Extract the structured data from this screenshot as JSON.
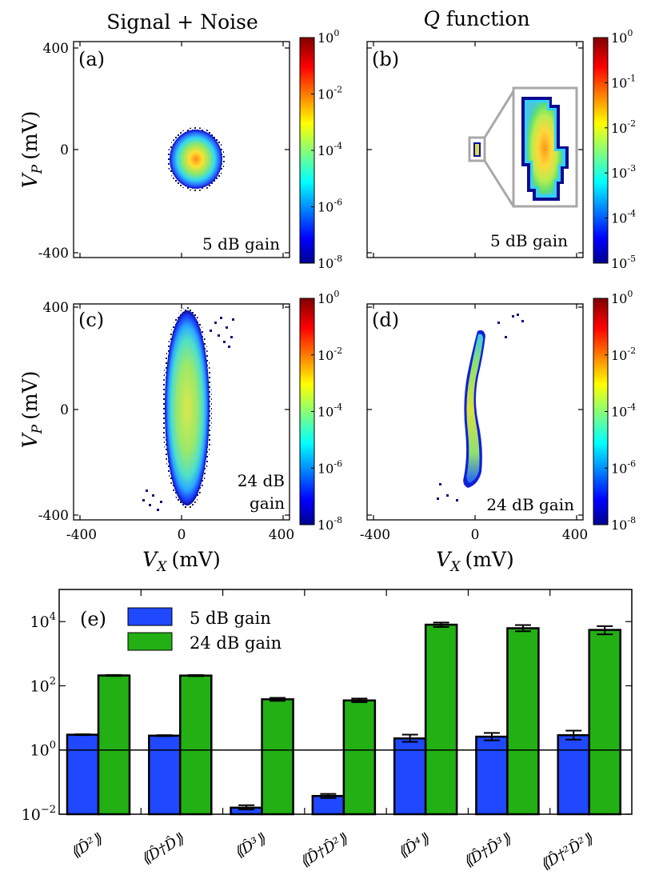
{
  "colors": {
    "blue_bar": "#1f48ff",
    "green_bar": "#22b014",
    "frame": "#000000",
    "inset_frame": "#a8a8a8"
  },
  "titles": {
    "left": "Signal + Noise",
    "right_q": "Q",
    "right_rest": "function"
  },
  "axes": {
    "vp_main": "V",
    "vp_sub": "P",
    "vp_unit": "(mV)",
    "vx_main": "V",
    "vx_sub": "X",
    "vx_unit": "(mV)"
  },
  "panels": [
    {
      "label": "(a)",
      "gain": "5 dB gain",
      "colorbar": {
        "ticks": [
          {
            "base": "10",
            "exp": "0"
          },
          {
            "base": "10",
            "exp": "-2"
          },
          {
            "base": "10",
            "exp": "-4"
          },
          {
            "base": "10",
            "exp": "-6"
          },
          {
            "base": "10",
            "exp": "-8"
          }
        ]
      },
      "y_ticks": [
        "400",
        "0",
        "-400"
      ]
    },
    {
      "label": "(b)",
      "gain": "5 dB gain",
      "colorbar": {
        "ticks": [
          {
            "base": "10",
            "exp": "0"
          },
          {
            "base": "10",
            "exp": "-1"
          },
          {
            "base": "10",
            "exp": "-2"
          },
          {
            "base": "10",
            "exp": "-3"
          },
          {
            "base": "10",
            "exp": "-4"
          },
          {
            "base": "10",
            "exp": "-5"
          }
        ]
      }
    },
    {
      "label": "(c)",
      "gain_line1": "24 dB",
      "gain_line2": "gain",
      "colorbar": {
        "ticks": [
          {
            "base": "10",
            "exp": "0"
          },
          {
            "base": "10",
            "exp": "-2"
          },
          {
            "base": "10",
            "exp": "-4"
          },
          {
            "base": "10",
            "exp": "-6"
          },
          {
            "base": "10",
            "exp": "-8"
          }
        ]
      },
      "y_ticks": [
        "400",
        "0",
        "-400"
      ],
      "x_ticks": [
        "-400",
        "0",
        "400"
      ]
    },
    {
      "label": "(d)",
      "gain": "24 dB gain",
      "colorbar": {
        "ticks": [
          {
            "base": "10",
            "exp": "0"
          },
          {
            "base": "10",
            "exp": "-2"
          },
          {
            "base": "10",
            "exp": "-4"
          },
          {
            "base": "10",
            "exp": "-6"
          },
          {
            "base": "10",
            "exp": "-8"
          }
        ]
      },
      "x_ticks": [
        "-400",
        "0",
        "400"
      ]
    }
  ],
  "chart_data": {
    "type": "bar",
    "panel_label": "(e)",
    "yscale": "log",
    "ylim": [
      0.01,
      100000
    ],
    "y_ticks": [
      {
        "base": "10",
        "exp": "−2",
        "value": 0.01
      },
      {
        "base": "10",
        "exp": "0",
        "value": 1
      },
      {
        "base": "10",
        "exp": "2",
        "value": 100
      },
      {
        "base": "10",
        "exp": "4",
        "value": 10000
      }
    ],
    "reference_line": 1,
    "legend_position": "top-left",
    "categories": [
      "⟪D̂²⟫",
      "⟪D̂†D̂⟫",
      "⟪D̂³⟫",
      "⟪D̂†D̂²⟫",
      "⟪D̂⁴⟫",
      "⟪D̂†D̂³⟫",
      "⟪D̂†²D̂²⟫"
    ],
    "series": [
      {
        "name": "5 dB gain",
        "color": "#1f48ff",
        "values": [
          3.0,
          2.8,
          0.016,
          0.037,
          2.3,
          2.6,
          2.9
        ],
        "err_low": [
          2.9,
          2.7,
          0.014,
          0.032,
          1.8,
          2.0,
          2.1
        ],
        "err_high": [
          3.1,
          2.9,
          0.019,
          0.043,
          3.0,
          3.4,
          4.0
        ]
      },
      {
        "name": "24 dB gain",
        "color": "#22b014",
        "values": [
          210,
          208,
          38,
          35,
          8000,
          6200,
          5500
        ],
        "err_low": [
          203,
          200,
          34,
          31,
          6800,
          5000,
          4000
        ],
        "err_high": [
          217,
          216,
          42,
          40,
          9300,
          7800,
          7200
        ]
      }
    ]
  }
}
